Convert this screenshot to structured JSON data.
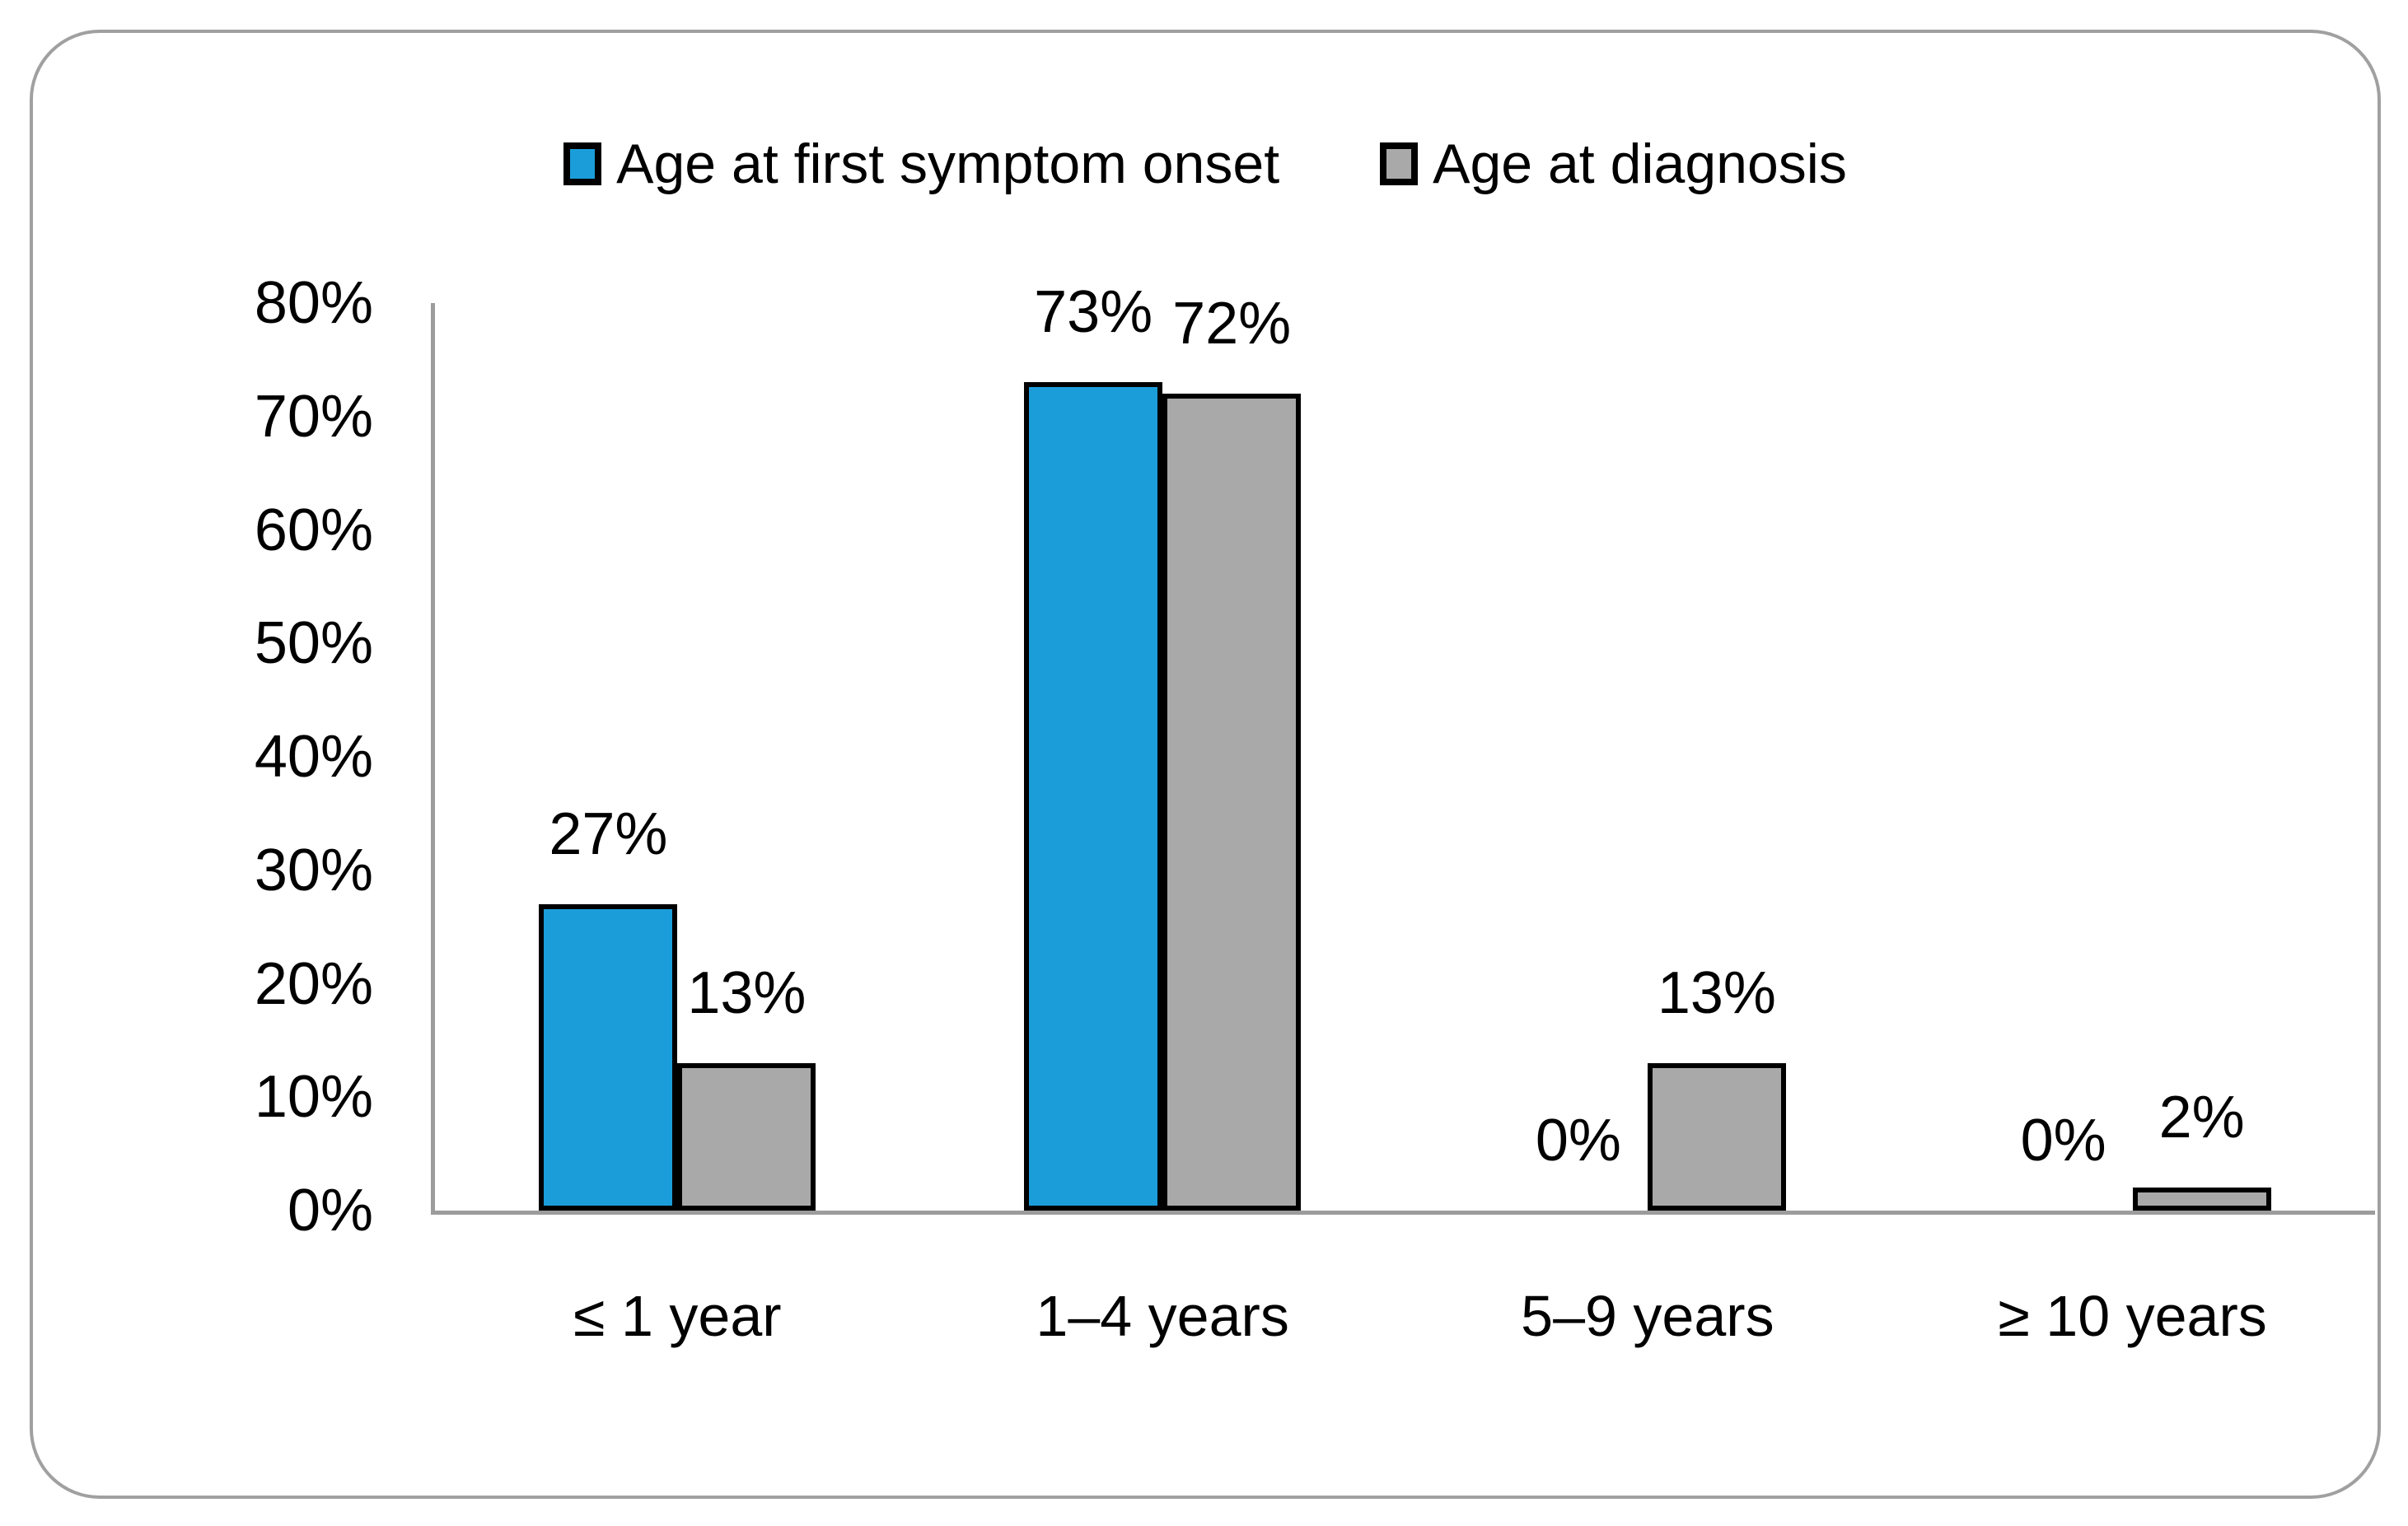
{
  "card": {
    "background": "#ffffff",
    "border_color": "#a0a0a0"
  },
  "chart_data": {
    "type": "bar",
    "title": "",
    "categories": [
      "≤ 1 year",
      "1–4 years",
      "5–9 years",
      "≥ 10 years"
    ],
    "series": [
      {
        "name": "Age at first symptom onset",
        "color": "#1b9dd9",
        "values": [
          27,
          73,
          0,
          0
        ],
        "data_labels": [
          "27%",
          "73%",
          "0%",
          "0%"
        ]
      },
      {
        "name": "Age at diagnosis",
        "color": "#a9a9a9",
        "values": [
          13,
          72,
          13,
          2
        ],
        "data_labels": [
          "13%",
          "72%",
          "13%",
          "2%"
        ]
      }
    ],
    "xlabel": "",
    "ylabel": "",
    "ylim": [
      0,
      80
    ],
    "y_ticks": [
      "0%",
      "10%",
      "20%",
      "30%",
      "40%",
      "50%",
      "60%",
      "70%",
      "80%"
    ],
    "legend_position": "top",
    "grid": false,
    "bar_border_color": "#000000",
    "axis_color": "#9c9c9c",
    "text_color": "#000000"
  }
}
